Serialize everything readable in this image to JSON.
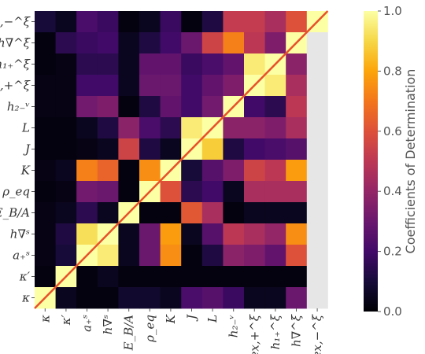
{
  "chart_data": {
    "type": "heatmap",
    "variables": [
      "κ",
      "κ′",
      "a₊ˢ",
      "h∇ˢ",
      "E_B/A",
      "ρ_eq",
      "K",
      "J",
      "L",
      "h₂₋ᵛ",
      "f_ex,+^ξ",
      "h₁₊^ξ",
      "h∇^ξ",
      "f_ex,−^ξ"
    ],
    "rows_top_to_bottom": [
      "f_ex,−^ξ",
      "h∇^ξ",
      "h₁₊^ξ",
      "f_ex,+^ξ",
      "h₂₋ᵛ",
      "L",
      "J",
      "K",
      "ρ_eq",
      "E_B/A",
      "h∇ˢ",
      "a₊ˢ",
      "κ′",
      "κ"
    ],
    "columns_left_to_right": [
      "κ",
      "κ′",
      "a₊ˢ",
      "h∇ˢ",
      "E_B/A",
      "ρ_eq",
      "K",
      "J",
      "L",
      "h₂₋ᵛ",
      "f_ex,+^ξ",
      "h₁₊^ξ",
      "h∇^ξ",
      "f_ex,−^ξ"
    ],
    "values": [
      [
        0.1,
        0.05,
        0.22,
        0.18,
        0.02,
        0.05,
        0.18,
        0.02,
        0.12,
        0.52,
        0.52,
        0.45,
        0.6,
        1.0
      ],
      [
        0.02,
        0.15,
        0.18,
        0.2,
        0.05,
        0.12,
        0.2,
        0.3,
        0.55,
        0.72,
        0.5,
        0.35,
        1.0,
        null
      ],
      [
        0.02,
        0.03,
        0.15,
        0.15,
        0.05,
        0.28,
        0.28,
        0.18,
        0.22,
        0.28,
        0.95,
        1.0,
        0.38,
        null
      ],
      [
        0.03,
        0.03,
        0.2,
        0.2,
        0.05,
        0.3,
        0.3,
        0.2,
        0.28,
        0.35,
        1.0,
        0.95,
        0.45,
        null
      ],
      [
        0.03,
        0.03,
        0.32,
        0.35,
        0.02,
        0.12,
        0.28,
        0.2,
        0.32,
        1.0,
        0.2,
        0.15,
        0.5,
        null
      ],
      [
        0.02,
        0.02,
        0.05,
        0.12,
        0.38,
        0.22,
        0.15,
        0.95,
        1.0,
        0.38,
        0.38,
        0.35,
        0.45,
        null
      ],
      [
        0.02,
        0.02,
        0.03,
        0.05,
        0.55,
        0.12,
        0.05,
        1.0,
        0.88,
        0.12,
        0.2,
        0.22,
        0.25,
        null
      ],
      [
        0.03,
        0.05,
        0.72,
        0.65,
        0.02,
        0.75,
        1.0,
        0.1,
        0.25,
        0.35,
        0.55,
        0.5,
        0.78,
        null
      ],
      [
        0.02,
        0.03,
        0.32,
        0.3,
        0.02,
        1.0,
        0.6,
        0.15,
        0.2,
        0.05,
        0.45,
        0.45,
        0.45,
        null
      ],
      [
        0.03,
        0.05,
        0.15,
        0.05,
        1.0,
        0.02,
        0.02,
        0.62,
        0.45,
        0.02,
        0.05,
        0.05,
        0.05,
        null
      ],
      [
        0.03,
        0.12,
        0.92,
        1.0,
        0.05,
        0.3,
        0.78,
        0.05,
        0.25,
        0.5,
        0.45,
        0.4,
        0.75,
        null
      ],
      [
        0.03,
        0.1,
        1.0,
        0.95,
        0.05,
        0.3,
        0.75,
        0.02,
        0.12,
        0.38,
        0.35,
        0.28,
        0.6,
        null
      ],
      [
        0.02,
        1.0,
        0.02,
        0.05,
        0.02,
        0.02,
        0.02,
        0.02,
        0.02,
        0.02,
        0.02,
        0.02,
        0.02,
        null
      ],
      [
        1.0,
        0.05,
        0.02,
        0.02,
        0.08,
        0.08,
        0.05,
        0.22,
        0.25,
        0.18,
        0.05,
        0.05,
        0.3,
        null
      ]
    ],
    "missing_color": "#e6e6e6",
    "diagonal_line_color": "#e8502a",
    "colormap": "inferno",
    "vmin": 0.0,
    "vmax": 1.0,
    "colorbar": {
      "label": "Coefficients of Determination",
      "ticks": [
        "0.0",
        "0.2",
        "0.4",
        "0.6",
        "0.8",
        "1.0"
      ],
      "tick_values": [
        0.0,
        0.2,
        0.4,
        0.6,
        0.8,
        1.0
      ]
    }
  }
}
